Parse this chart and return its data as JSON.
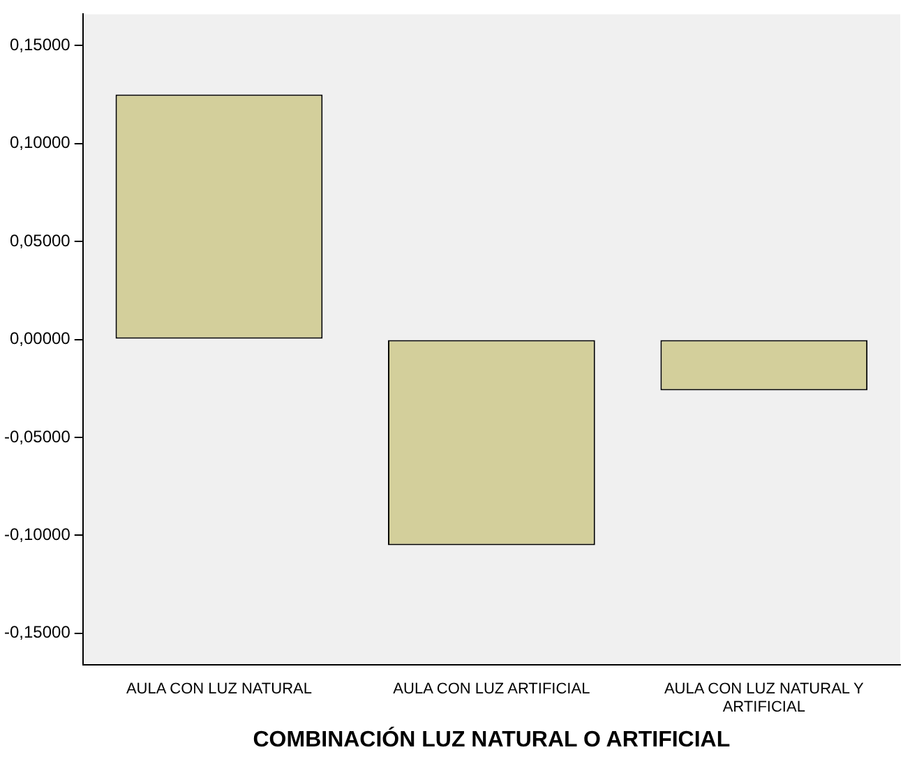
{
  "chart_data": {
    "type": "bar",
    "xlabel": "COMBINACIÓN LUZ NATURAL O ARTIFICIAL",
    "categories": [
      "AULA CON LUZ NATURAL",
      "AULA CON LUZ ARTIFICIAL",
      "AULA CON LUZ NATURAL Y ARTIFICIAL"
    ],
    "values": [
      0.125,
      -0.105,
      -0.026
    ],
    "color": "#d3cf9b",
    "ylim": [
      -0.166,
      0.166
    ],
    "yticks": [
      {
        "value": -0.15,
        "label": "-0,15000"
      },
      {
        "value": -0.1,
        "label": "-0,10000"
      },
      {
        "value": -0.05,
        "label": "-0,05000"
      },
      {
        "value": 0,
        "label": "0,00000"
      },
      {
        "value": 0.05,
        "label": "0,05000"
      },
      {
        "value": 0.1,
        "label": "0,10000"
      },
      {
        "value": 0.15,
        "label": "0,15000"
      }
    ],
    "grid": false,
    "legend": false
  }
}
